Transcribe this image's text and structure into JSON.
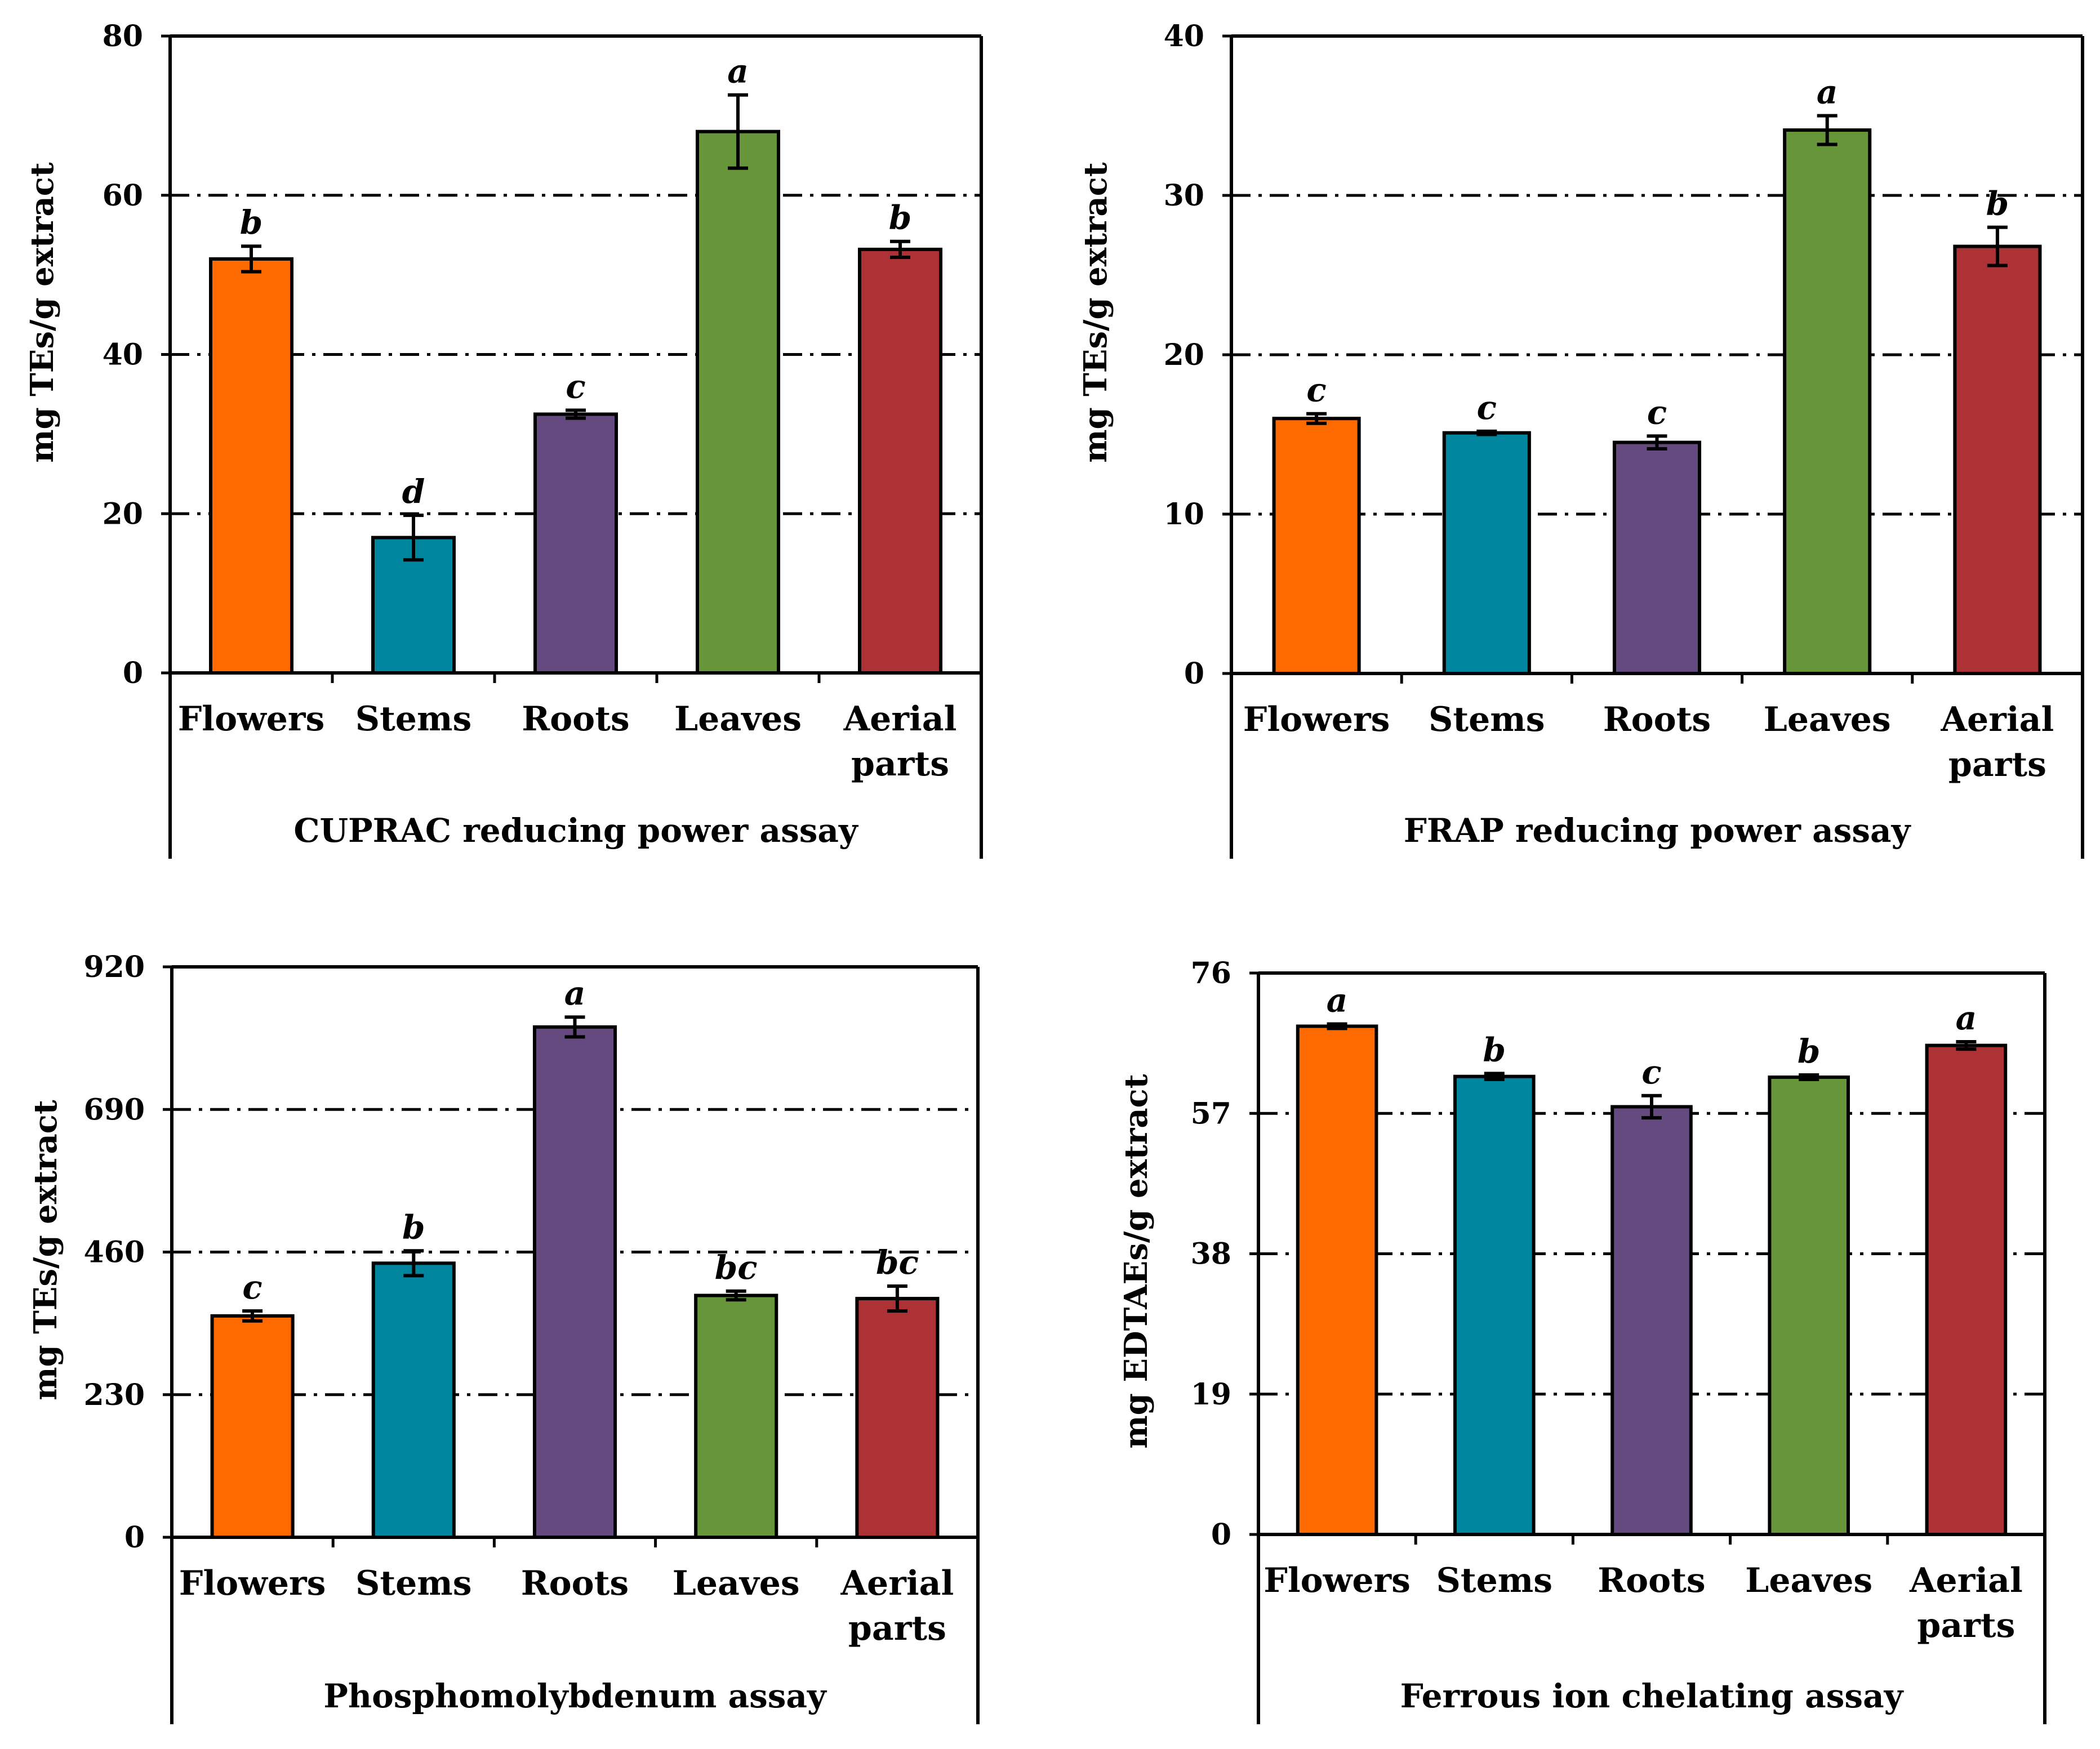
{
  "colors": {
    "bars": [
      "#ff6a00",
      "#00879f",
      "#654a7f",
      "#67963a",
      "#ad3235"
    ],
    "bar_stroke": "#000000",
    "grid": "#000000",
    "axis": "#000000"
  },
  "chart_data": [
    {
      "type": "bar",
      "title": "CUPRAC reducing power assay",
      "ylabel": "mg TEs/g extract",
      "ylim": [
        0,
        80
      ],
      "yticks": [
        "0",
        "20",
        "40",
        "60",
        "80"
      ],
      "grid": "dash-dot",
      "categories": [
        "Flowers",
        "Stems",
        "Roots",
        "Leaves",
        "Aerial parts"
      ],
      "category_lines": [
        [
          "Flowers"
        ],
        [
          "Stems"
        ],
        [
          "Roots"
        ],
        [
          "Leaves"
        ],
        [
          "Aerial",
          "parts"
        ]
      ],
      "values": [
        52,
        17,
        32.5,
        68,
        53.2
      ],
      "errors": [
        1.6,
        2.8,
        0.5,
        4.6,
        1
      ],
      "significance": [
        "b",
        "d",
        "c",
        "a",
        "b"
      ]
    },
    {
      "type": "bar",
      "title": "FRAP reducing power assay",
      "ylabel": "mg TEs/g extract",
      "ylim": [
        0,
        40
      ],
      "yticks": [
        "0",
        "10",
        "20",
        "30",
        "40"
      ],
      "grid": "dash-dot",
      "categories": [
        "Flowers",
        "Stems",
        "Roots",
        "Leaves",
        "Aerial parts"
      ],
      "category_lines": [
        [
          "Flowers"
        ],
        [
          "Stems"
        ],
        [
          "Roots"
        ],
        [
          "Leaves"
        ],
        [
          "Aerial",
          "parts"
        ]
      ],
      "values": [
        16,
        15.1,
        14.5,
        34.1,
        26.8
      ],
      "errors": [
        0.3,
        0.1,
        0.4,
        0.9,
        1.2
      ],
      "significance": [
        "c",
        "c",
        "c",
        "a",
        "b"
      ]
    },
    {
      "type": "bar",
      "title": "Phosphomolybdenum assay",
      "ylabel": "mg TEs/g extract",
      "ylim": [
        0,
        920
      ],
      "yticks": [
        "0",
        "230",
        "460",
        "690",
        "920"
      ],
      "grid": "dash-dot",
      "categories": [
        "Flowers",
        "Stems",
        "Roots",
        "Leaves",
        "Aerial parts"
      ],
      "category_lines": [
        [
          "Flowers"
        ],
        [
          "Stems"
        ],
        [
          "Roots"
        ],
        [
          "Leaves"
        ],
        [
          "Aerial",
          "parts"
        ]
      ],
      "values": [
        357,
        442,
        823,
        390,
        385
      ],
      "errors": [
        8,
        20,
        16,
        7,
        20
      ],
      "significance": [
        "c",
        "b",
        "a",
        "bc",
        "bc"
      ]
    },
    {
      "type": "bar",
      "title": "Ferrous ion chelating assay",
      "ylabel": "mg EDTAEs/g extract",
      "ylim": [
        0,
        76
      ],
      "yticks": [
        "0",
        "19",
        "38",
        "57",
        "76"
      ],
      "grid": "dash-dot",
      "categories": [
        "Flowers",
        "Stems",
        "Roots",
        "Leaves",
        "Aerial parts"
      ],
      "category_lines": [
        [
          "Flowers"
        ],
        [
          "Stems"
        ],
        [
          "Roots"
        ],
        [
          "Leaves"
        ],
        [
          "Aerial",
          "parts"
        ]
      ],
      "values": [
        68.8,
        62,
        57.9,
        61.9,
        66.2
      ],
      "errors": [
        0.3,
        0.4,
        1.5,
        0.3,
        0.5
      ],
      "significance": [
        "a",
        "b",
        "c",
        "b",
        "a"
      ]
    }
  ]
}
